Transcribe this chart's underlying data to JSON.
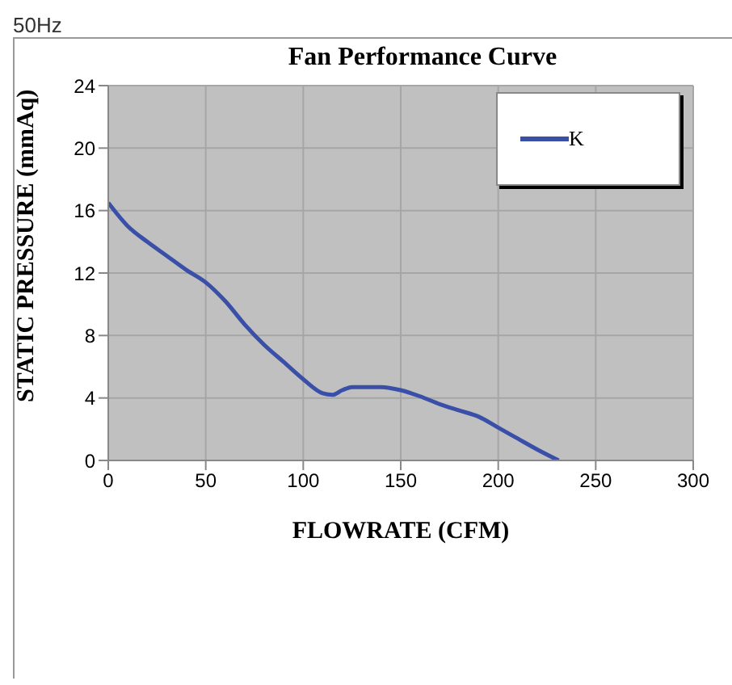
{
  "chart_data": {
    "type": "line",
    "title": "Fan Performance Curve",
    "xlabel": "FLOWRATE (CFM)",
    "ylabel": "STATIC PRESSURE (mmAq)",
    "annotations": [
      "50Hz"
    ],
    "xlim": [
      0,
      300
    ],
    "xticks": [
      0,
      50,
      100,
      150,
      200,
      250,
      300
    ],
    "ylim": [
      0,
      24
    ],
    "yticks": [
      0,
      4,
      8,
      12,
      16,
      20,
      24
    ],
    "grid": true,
    "legend": "top right",
    "marker": "none",
    "line_style": "solid",
    "series": [
      {
        "name": "K",
        "color": "#3a4fa8",
        "x": [
          0,
          10,
          20,
          30,
          40,
          50,
          60,
          70,
          80,
          90,
          100,
          110,
          115,
          120,
          125,
          140,
          150,
          160,
          170,
          180,
          190,
          200,
          210,
          220,
          231
        ],
        "values": [
          16.5,
          15,
          14,
          13.1,
          12.2,
          11.4,
          10.2,
          8.7,
          7.4,
          6.3,
          5.2,
          4.3,
          4.2,
          4.5,
          4.7,
          4.7,
          4.5,
          4.1,
          3.6,
          3.2,
          2.8,
          2.1,
          1.4,
          0.7,
          0
        ]
      }
    ]
  }
}
